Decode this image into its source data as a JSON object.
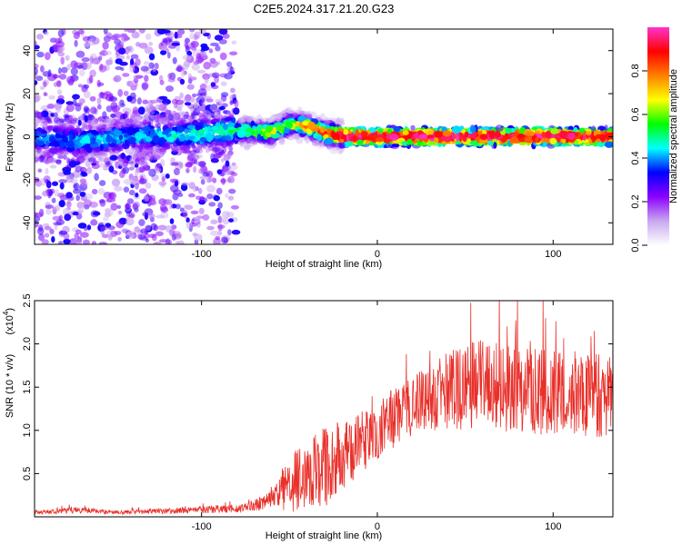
{
  "page_title": "C2E5.2024.317.21.20.G23",
  "chart_data": [
    {
      "type": "heatmap",
      "title": "C2E5.2024.317.21.20.G23",
      "xlabel": "Height of straight line (km)",
      "ylabel": "Frequency (Hz)",
      "xlim": [
        -195,
        134
      ],
      "ylim": [
        -50,
        50
      ],
      "xticks": [
        -100,
        0,
        100
      ],
      "yticks": [
        -40,
        -20,
        0,
        20,
        40
      ],
      "colorbar": {
        "label": "Normalized spectral amplitude",
        "range": [
          0,
          1
        ],
        "ticks": [
          "0.0",
          "0.2",
          "0.4",
          "0.6",
          "0.8"
        ],
        "colors": [
          "#ffffff",
          "#c8a8f0",
          "#8b00ff",
          "#0000ff",
          "#00ffff",
          "#00ff00",
          "#ffff00",
          "#ff8000",
          "#ff0000",
          "#ff33cc"
        ]
      },
      "ridge": {
        "description_points_x": [
          -195,
          -170,
          -140,
          -110,
          -80,
          -60,
          -50,
          -40,
          -30,
          -20,
          0,
          50,
          100,
          134
        ],
        "center_freq": [
          0,
          -2,
          0,
          1,
          3,
          2,
          6,
          5,
          2,
          0,
          0,
          0,
          0,
          0
        ],
        "peak_amplitude": [
          0.3,
          0.35,
          0.35,
          0.4,
          0.45,
          0.6,
          0.55,
          0.7,
          0.8,
          0.95,
          0.9,
          0.9,
          0.9,
          0.85
        ]
      }
    },
    {
      "type": "line",
      "xlabel": "Height of straight line (km)",
      "ylabel": "SNR (10 * v/v)",
      "y_scale_label": "(x10",
      "y_scale_exp": "4",
      "xlim": [
        -195,
        134
      ],
      "ylim": [
        0,
        2.5
      ],
      "xticks": [
        -100,
        0,
        100
      ],
      "yticks": [
        "0.5",
        "1.0",
        "1.5",
        "2.0",
        "2.5"
      ],
      "color": "#e8302a",
      "envelope_x": [
        -195,
        -170,
        -150,
        -100,
        -75,
        -60,
        -50,
        -40,
        -30,
        -20,
        -10,
        0,
        10,
        20,
        30,
        40,
        50,
        60,
        70,
        80,
        100,
        120,
        134
      ],
      "envelope_y": [
        0.05,
        0.08,
        0.05,
        0.08,
        0.1,
        0.2,
        0.35,
        0.5,
        0.6,
        0.7,
        0.85,
        1.0,
        1.15,
        1.3,
        1.4,
        1.45,
        1.5,
        1.55,
        1.5,
        1.45,
        1.45,
        1.4,
        1.35
      ],
      "noise_amplitude": [
        0.02,
        0.04,
        0.02,
        0.04,
        0.05,
        0.1,
        0.3,
        0.45,
        0.5,
        0.4,
        0.35,
        0.35,
        0.35,
        0.35,
        0.4,
        0.45,
        0.5,
        0.5,
        0.5,
        0.5,
        0.5,
        0.5,
        0.5
      ]
    }
  ]
}
